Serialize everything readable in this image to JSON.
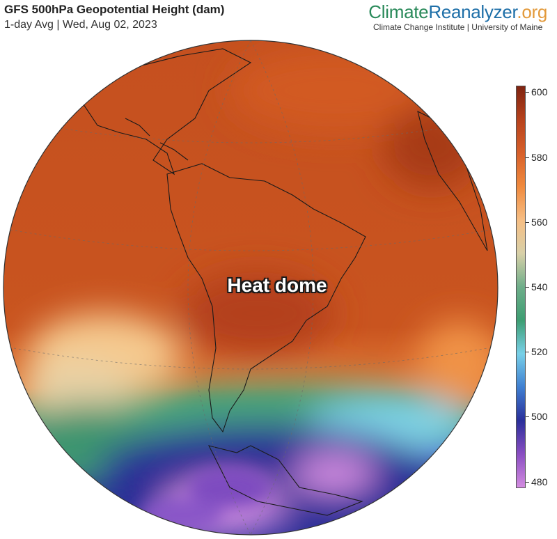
{
  "header": {
    "title": "GFS 500hPa Geopotential Height (dam)",
    "subtitle": "1-day Avg | Wed, Aug 02, 2023"
  },
  "brand": {
    "name_part_a": "Climate",
    "name_part_b": "Reanalyzer",
    "name_part_c": ".org",
    "affiliation": "Climate Change Institute | University of Maine",
    "colors": {
      "a": "#2a8a5a",
      "b": "#1e6fa8",
      "c": "#e39a3b"
    }
  },
  "map": {
    "projection": "orthographic",
    "center": "South America",
    "annotation": "Heat dome"
  },
  "colorbar": {
    "min": 478,
    "max": 602,
    "ticks": [
      600,
      580,
      560,
      540,
      520,
      500,
      480
    ],
    "colors": [
      "#d38ce0",
      "#8a4ec2",
      "#2a2f9a",
      "#3f7fd1",
      "#78d0e8",
      "#3d9d72",
      "#6fae8a",
      "#d8d0a8",
      "#f6be84",
      "#f08a3e",
      "#d7602a",
      "#b7421c",
      "#7f2411"
    ]
  }
}
